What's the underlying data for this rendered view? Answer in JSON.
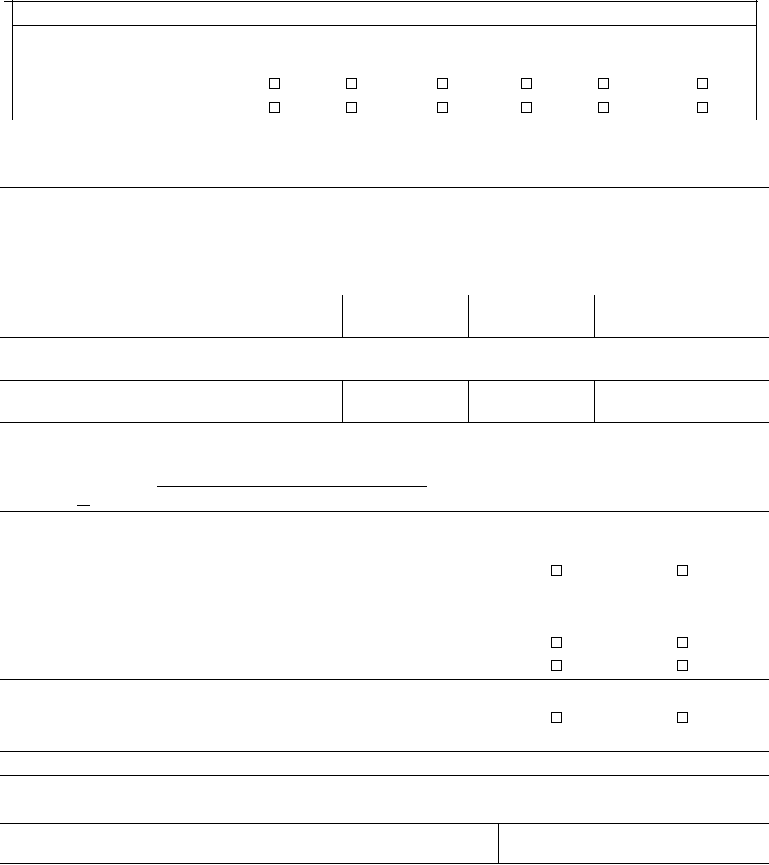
{
  "form": {
    "type": "blank-form",
    "line_color": "#000000",
    "background_color": "#ffffff",
    "checkbox_rows": [
      {
        "checked": [
          false,
          false,
          false,
          false,
          false,
          false
        ]
      },
      {
        "checked": [
          false,
          false,
          false,
          false,
          false,
          false
        ]
      }
    ],
    "lower_checkbox_rows": [
      {
        "checked": [
          false,
          false
        ]
      },
      {
        "checked": [
          false,
          false
        ]
      },
      {
        "checked": [
          false,
          false
        ]
      },
      {
        "checked": [
          false,
          false
        ]
      }
    ]
  }
}
